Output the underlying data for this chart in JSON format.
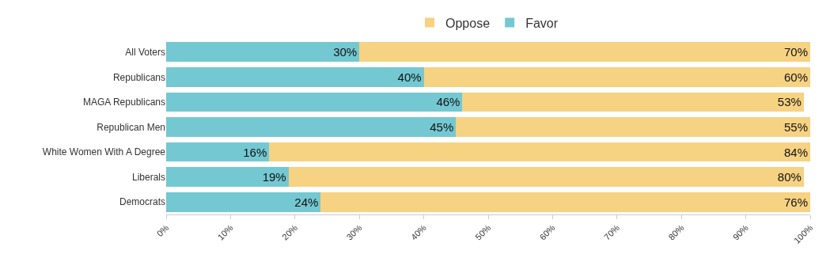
{
  "chart_data": {
    "type": "bar",
    "orientation": "horizontal",
    "stacked": true,
    "legend": "top",
    "categories": [
      "All Voters",
      "Republicans",
      "MAGA Republicans",
      "Republican Men",
      "White Women With A Degree",
      "Liberals",
      "Democrats"
    ],
    "series": [
      {
        "name": "Favor",
        "color": "#74c8d2",
        "values": [
          30,
          40,
          46,
          45,
          16,
          19,
          24
        ],
        "value_labels": [
          "30%",
          "40%",
          "46%",
          "45%",
          "16%",
          "19%",
          "24%"
        ]
      },
      {
        "name": "Oppose",
        "color": "#f6d283",
        "values": [
          70,
          60,
          53,
          55,
          84,
          80,
          76
        ],
        "value_labels": [
          "70%",
          "60%",
          "53%",
          "55%",
          "84%",
          "80%",
          "76%"
        ]
      }
    ],
    "xlim": [
      0,
      100
    ],
    "xticks": [
      {
        "value": 0,
        "label": "0%"
      },
      {
        "value": 10,
        "label": "10%"
      },
      {
        "value": 20,
        "label": "20%"
      },
      {
        "value": 30,
        "label": "30%"
      },
      {
        "value": 40,
        "label": "40%"
      },
      {
        "value": 50,
        "label": "50%"
      },
      {
        "value": 60,
        "label": "60%"
      },
      {
        "value": 70,
        "label": "70%"
      },
      {
        "value": 80,
        "label": "80%"
      },
      {
        "value": 90,
        "label": "90%"
      },
      {
        "value": 100,
        "label": "100%"
      }
    ]
  }
}
